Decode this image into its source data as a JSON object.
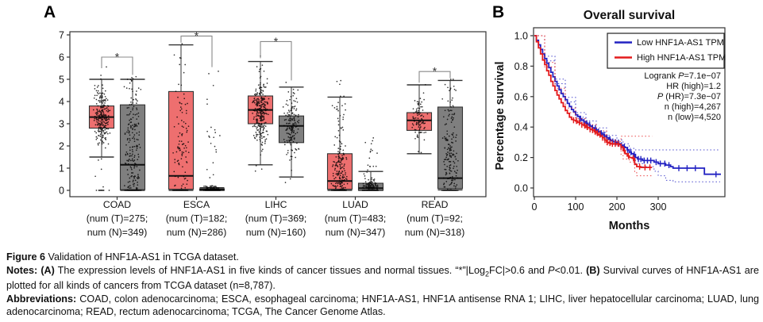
{
  "figure": {
    "panel_a_label": "A",
    "panel_b_label": "B"
  },
  "chart_data": [
    {
      "type": "boxplot",
      "name": "expression-boxplot",
      "ylim": [
        0,
        7
      ],
      "yticks": [
        0,
        1,
        2,
        3,
        4,
        5,
        6,
        7
      ],
      "colors": {
        "tumor": "#ee6f6f",
        "normal": "#7f7f7f",
        "box_border": "#333333",
        "points": "#000000",
        "bracket": "#888888"
      },
      "groups": [
        {
          "name": "COAD",
          "label_lines": [
            "COAD",
            "(num (T)=275;",
            "num (N)=349)"
          ],
          "tumor": {
            "q1": 2.8,
            "median": 3.3,
            "q3": 3.8,
            "wlo": 1.5,
            "whi": 5.0,
            "pmin": 0,
            "pmax": 6.0,
            "n": 275,
            "outlier_frac": 0.1,
            "floor_frac": 0.06
          },
          "normal": {
            "q1": 0.03,
            "median": 1.15,
            "q3": 3.85,
            "wlo": 0.0,
            "whi": 5.0,
            "pmin": 0,
            "pmax": 5.3,
            "n": 349,
            "outlier_frac": 0.1,
            "floor_frac": 0.12
          },
          "sig": {
            "y": 6.0,
            "leg_t": 0.5,
            "leg_n": 0.8,
            "label": "*"
          }
        },
        {
          "name": "ESCA",
          "label_lines": [
            "ESCA",
            "(num (T)=182;",
            "num (N)=286)"
          ],
          "tumor": {
            "q1": 0.05,
            "median": 0.65,
            "q3": 4.45,
            "wlo": 0.0,
            "whi": 6.55,
            "pmin": 0,
            "pmax": 6.6,
            "n": 182,
            "outlier_frac": 0.15,
            "floor_frac": 0.12
          },
          "normal": {
            "q1": 0.0,
            "median": 0.03,
            "q3": 0.07,
            "wlo": 0.0,
            "whi": 0.12,
            "pmin": 0,
            "pmax": 5.4,
            "n": 286,
            "outlier_frac": 0.1,
            "floor_frac": 0.55
          },
          "sig": {
            "y": 6.95,
            "leg_t": 0.3,
            "leg_n": 1.4,
            "label": "*"
          }
        },
        {
          "name": "LIHC",
          "label_lines": [
            "LIHC",
            "(num (T)=369;",
            "num (N)=160)"
          ],
          "tumor": {
            "q1": 3.0,
            "median": 3.62,
            "q3": 4.25,
            "wlo": 1.15,
            "whi": 5.8,
            "pmin": 0.3,
            "pmax": 6.2,
            "n": 369,
            "outlier_frac": 0.1,
            "floor_frac": 0.0
          },
          "normal": {
            "q1": 2.15,
            "median": 2.9,
            "q3": 3.35,
            "wlo": 0.6,
            "whi": 4.65,
            "pmin": 0.2,
            "pmax": 5.0,
            "n": 160,
            "outlier_frac": 0.1,
            "floor_frac": 0.0
          },
          "sig": {
            "y": 6.7,
            "leg_t": 0.75,
            "leg_n": 1.75,
            "label": "*"
          }
        },
        {
          "name": "LUAD",
          "label_lines": [
            "LUAD",
            "(num (T)=483;",
            "num (N)=347)"
          ],
          "tumor": {
            "q1": 0.05,
            "median": 0.42,
            "q3": 1.65,
            "wlo": 0.0,
            "whi": 4.2,
            "pmin": 0,
            "pmax": 5.3,
            "n": 483,
            "outlier_frac": 0.14,
            "floor_frac": 0.18
          },
          "normal": {
            "q1": 0.0,
            "median": 0.1,
            "q3": 0.32,
            "wlo": 0.0,
            "whi": 0.85,
            "pmin": 0,
            "pmax": 2.6,
            "n": 347,
            "outlier_frac": 0.12,
            "floor_frac": 0.45
          },
          "sig": null
        },
        {
          "name": "READ",
          "label_lines": [
            "READ",
            "(num (T)=92;",
            "num (N)=318)"
          ],
          "tumor": {
            "q1": 2.7,
            "median": 3.15,
            "q3": 3.5,
            "wlo": 1.65,
            "whi": 4.75,
            "pmin": 1.5,
            "pmax": 4.9,
            "n": 92,
            "outlier_frac": 0.1,
            "floor_frac": 0.0
          },
          "normal": {
            "q1": 0.08,
            "median": 0.55,
            "q3": 3.75,
            "wlo": 0.02,
            "whi": 4.95,
            "pmin": 0,
            "pmax": 5.0,
            "n": 318,
            "outlier_frac": 0.1,
            "floor_frac": 0.15
          },
          "sig": {
            "y": 5.35,
            "leg_t": 0.5,
            "leg_n": 0.3,
            "label": "*"
          }
        }
      ]
    },
    {
      "type": "km",
      "name": "survival-plot",
      "title": "Overall survival",
      "xlabel": "Months",
      "ylabel": "Percentage survival",
      "xlim": [
        0,
        461
      ],
      "xticks": [
        0,
        100,
        200,
        300
      ],
      "ylim": [
        0,
        1
      ],
      "yticks": [
        "0.0",
        "0.2",
        "0.4",
        "0.6",
        "0.8",
        "1.0"
      ],
      "legend": [
        {
          "label": "Low HNF1A-AS1 TPM",
          "color": "#2222c2"
        },
        {
          "label": "High HNF1A-AS1 TPM",
          "color": "#e31a1c"
        }
      ],
      "stats_lines": [
        [
          [
            "Logrank ",
            0
          ],
          [
            "P",
            1
          ],
          [
            "=7.1e−07",
            0
          ]
        ],
        [
          [
            "HR (high)=1.2",
            0
          ]
        ],
        [
          [
            "P",
            1
          ],
          [
            " (HR)=7.3e−07",
            0
          ]
        ],
        [
          [
            "n (high)=4,267",
            0
          ]
        ],
        [
          [
            "n (low)=4,520",
            0
          ]
        ]
      ],
      "series": [
        {
          "name": "Low HNF1A-AS1 TPM",
          "color": "#2222c2",
          "points": [
            [
              0,
              1.0
            ],
            [
              5,
              0.97
            ],
            [
              10,
              0.94
            ],
            [
              15,
              0.91
            ],
            [
              20,
              0.88
            ],
            [
              25,
              0.85
            ],
            [
              30,
              0.82
            ],
            [
              35,
              0.79
            ],
            [
              40,
              0.76
            ],
            [
              45,
              0.73
            ],
            [
              50,
              0.7
            ],
            [
              55,
              0.67
            ],
            [
              60,
              0.645
            ],
            [
              65,
              0.62
            ],
            [
              70,
              0.6
            ],
            [
              75,
              0.58
            ],
            [
              80,
              0.555
            ],
            [
              85,
              0.535
            ],
            [
              90,
              0.515
            ],
            [
              95,
              0.5
            ],
            [
              100,
              0.48
            ],
            [
              105,
              0.47
            ],
            [
              110,
              0.455
            ],
            [
              115,
              0.445
            ],
            [
              120,
              0.435
            ],
            [
              125,
              0.425
            ],
            [
              130,
              0.415
            ],
            [
              135,
              0.405
            ],
            [
              140,
              0.395
            ],
            [
              145,
              0.39
            ],
            [
              150,
              0.38
            ],
            [
              155,
              0.37
            ],
            [
              160,
              0.36
            ],
            [
              165,
              0.35
            ],
            [
              170,
              0.34
            ],
            [
              175,
              0.33
            ],
            [
              180,
              0.32
            ],
            [
              185,
              0.31
            ],
            [
              190,
              0.305
            ],
            [
              195,
              0.3
            ],
            [
              200,
              0.295
            ],
            [
              205,
              0.29
            ],
            [
              210,
              0.28
            ],
            [
              215,
              0.27
            ],
            [
              220,
              0.265
            ],
            [
              225,
              0.25
            ],
            [
              230,
              0.235
            ],
            [
              235,
              0.225
            ],
            [
              240,
              0.22
            ],
            [
              245,
              0.2
            ],
            [
              250,
              0.19
            ],
            [
              262,
              0.18
            ],
            [
              290,
              0.17
            ],
            [
              300,
              0.16
            ],
            [
              318,
              0.15
            ],
            [
              330,
              0.14
            ],
            [
              336,
              0.13
            ],
            [
              405,
              0.13
            ],
            [
              412,
              0.09
            ],
            [
              452,
              0.09
            ]
          ],
          "censor": [
            112,
            120,
            127,
            134,
            141,
            148,
            155,
            162,
            169,
            176,
            183,
            190,
            197,
            204,
            211,
            218,
            226,
            234,
            242,
            252,
            258,
            266,
            274,
            282,
            295,
            305,
            316,
            326,
            350,
            370,
            390,
            440
          ],
          "ci_upper": [
            [
              0,
              1.0
            ],
            [
              25,
              0.865
            ],
            [
              50,
              0.715
            ],
            [
              75,
              0.595
            ],
            [
              100,
              0.495
            ],
            [
              125,
              0.44
            ],
            [
              150,
              0.395
            ],
            [
              175,
              0.345
            ],
            [
              200,
              0.315
            ],
            [
              215,
              0.29
            ],
            [
              230,
              0.26
            ],
            [
              245,
              0.25
            ],
            [
              450,
              0.25
            ]
          ],
          "ci_lower": [
            [
              0,
              1.0
            ],
            [
              25,
              0.835
            ],
            [
              50,
              0.685
            ],
            [
              75,
              0.565
            ],
            [
              100,
              0.465
            ],
            [
              125,
              0.41
            ],
            [
              150,
              0.365
            ],
            [
              175,
              0.315
            ],
            [
              200,
              0.275
            ],
            [
              215,
              0.25
            ],
            [
              230,
              0.21
            ],
            [
              245,
              0.16
            ],
            [
              262,
              0.14
            ],
            [
              290,
              0.11
            ],
            [
              300,
              0.08
            ],
            [
              318,
              0.05
            ],
            [
              336,
              0.04
            ],
            [
              450,
              0.04
            ]
          ]
        },
        {
          "name": "High HNF1A-AS1 TPM",
          "color": "#e31a1c",
          "points": [
            [
              0,
              1.0
            ],
            [
              5,
              0.96
            ],
            [
              10,
              0.92
            ],
            [
              15,
              0.88
            ],
            [
              20,
              0.84
            ],
            [
              25,
              0.81
            ],
            [
              30,
              0.77
            ],
            [
              35,
              0.74
            ],
            [
              40,
              0.7
            ],
            [
              45,
              0.67
            ],
            [
              50,
              0.64
            ],
            [
              55,
              0.61
            ],
            [
              60,
              0.585
            ],
            [
              65,
              0.56
            ],
            [
              70,
              0.535
            ],
            [
              75,
              0.51
            ],
            [
              80,
              0.49
            ],
            [
              85,
              0.465
            ],
            [
              90,
              0.45
            ],
            [
              95,
              0.445
            ],
            [
              100,
              0.44
            ],
            [
              105,
              0.43
            ],
            [
              110,
              0.425
            ],
            [
              115,
              0.415
            ],
            [
              120,
              0.41
            ],
            [
              125,
              0.4
            ],
            [
              130,
              0.395
            ],
            [
              135,
              0.385
            ],
            [
              140,
              0.38
            ],
            [
              145,
              0.37
            ],
            [
              150,
              0.36
            ],
            [
              155,
              0.35
            ],
            [
              160,
              0.34
            ],
            [
              165,
              0.33
            ],
            [
              170,
              0.315
            ],
            [
              175,
              0.3
            ],
            [
              180,
              0.295
            ],
            [
              185,
              0.29
            ],
            [
              195,
              0.29
            ],
            [
              200,
              0.29
            ],
            [
              205,
              0.285
            ],
            [
              210,
              0.27
            ],
            [
              215,
              0.245
            ],
            [
              220,
              0.225
            ],
            [
              225,
              0.21
            ],
            [
              230,
              0.2
            ],
            [
              237,
              0.195
            ],
            [
              243,
              0.155
            ],
            [
              248,
              0.14
            ],
            [
              258,
              0.135
            ],
            [
              285,
              0.135
            ]
          ],
          "censor": [
            95,
            102,
            109,
            115,
            122,
            128,
            135,
            141,
            147,
            153,
            159,
            165,
            171,
            177,
            183,
            189,
            196,
            203,
            210,
            218,
            228,
            240,
            255,
            268,
            280
          ],
          "ci_upper": [
            [
              0,
              1.0
            ],
            [
              25,
              0.825
            ],
            [
              50,
              0.655
            ],
            [
              75,
              0.525
            ],
            [
              100,
              0.455
            ],
            [
              125,
              0.415
            ],
            [
              150,
              0.375
            ],
            [
              175,
              0.315
            ],
            [
              200,
              0.305
            ],
            [
              210,
              0.34
            ],
            [
              285,
              0.34
            ]
          ],
          "ci_lower": [
            [
              0,
              1.0
            ],
            [
              25,
              0.795
            ],
            [
              50,
              0.625
            ],
            [
              75,
              0.495
            ],
            [
              100,
              0.425
            ],
            [
              125,
              0.385
            ],
            [
              150,
              0.345
            ],
            [
              175,
              0.285
            ],
            [
              200,
              0.275
            ],
            [
              210,
              0.22
            ],
            [
              215,
              0.19
            ],
            [
              230,
              0.17
            ],
            [
              243,
              0.1
            ],
            [
              248,
              0.08
            ],
            [
              285,
              0.08
            ]
          ]
        }
      ]
    }
  ],
  "caption": {
    "figure_label": "Figure 6 ",
    "figure_text": "Validation of HNF1A-AS1 in TCGA dataset.",
    "notes_label": "Notes: ",
    "notes_a_label": "(A)",
    "notes_a_text": " The expression levels of HNF1A-AS1 in five kinds of cancer tissues and normal tissues. “*”|Log",
    "notes_sub": "2",
    "notes_mid": "FC|>0.6 and ",
    "notes_p": "P",
    "notes_after_p": "<0.01. ",
    "notes_b_label": "(B)",
    "notes_b_text": " Survival curves of HNF1A-AS1 are plotted for all kinds of cancers from TCGA dataset (n=8,787).",
    "abbrev_label": "Abbreviations: ",
    "abbrev_text": "COAD, colon adenocarcinoma; ESCA, esophageal carcinoma; HNF1A-AS1, HNF1A antisense RNA 1; LIHC, liver hepatocellular carcinoma; LUAD, lung adenocarcinoma; READ, rectum adenocarcinoma; TCGA, The Cancer Genome Atlas."
  }
}
